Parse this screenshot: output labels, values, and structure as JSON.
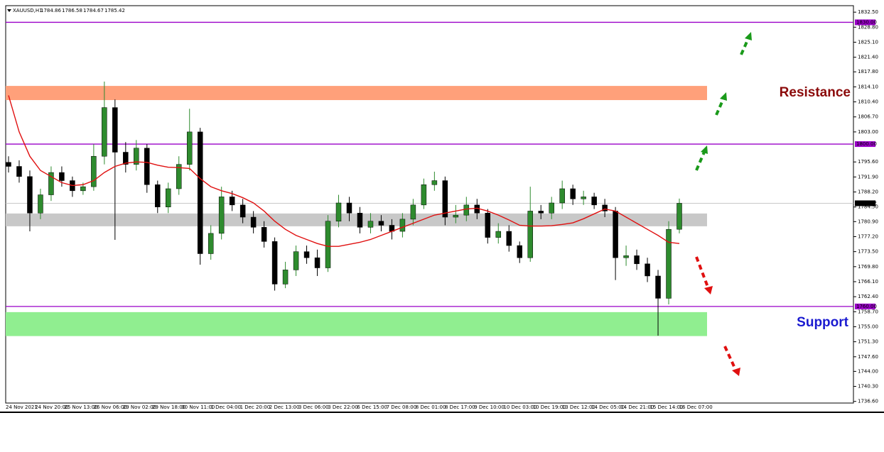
{
  "header": {
    "symbol": "XAUUSD,H1",
    "ohlc": [
      1784.86,
      1786.58,
      1784.67,
      1785.42
    ]
  },
  "chart_data": {
    "type": "candlestick",
    "xtick_labels": [
      "24 Nov 2021",
      "24 Nov 20:00",
      "25 Nov 13:00",
      "26 Nov 06:00",
      "29 Nov 02:00",
      "29 Nov 18:00",
      "30 Nov 11:00",
      "1 Dec 04:00",
      "1 Dec 20:00",
      "2 Dec 13:00",
      "3 Dec 06:00",
      "3 Dec 22:00",
      "6 Dec 15:00",
      "7 Dec 08:00",
      "8 Dec 01:00",
      "8 Dec 17:00",
      "9 Dec 10:00",
      "10 Dec 03:00",
      "10 Dec 19:00",
      "13 Dec 12:00",
      "14 Dec 05:00",
      "14 Dec 21:00",
      "15 Dec 14:00",
      "16 Dec 07:00"
    ],
    "open": [
      1795.5,
      1794.5,
      1792,
      1783,
      1787.5,
      1793,
      1791,
      1788.5,
      1789.5,
      1797,
      1809,
      1798,
      1795,
      1799,
      1790,
      1784.5,
      1789,
      1795,
      1803,
      1773,
      1778,
      1787,
      1785,
      1782,
      1779.5,
      1776,
      1765.5,
      1769,
      1773.5,
      1772,
      1769.5,
      1781,
      1785.5,
      1783,
      1779.5,
      1781,
      1780,
      1778.5,
      1781.5,
      1785,
      1790,
      1791,
      1782,
      1782.5,
      1785,
      1783,
      1777,
      1778.5,
      1775,
      1772,
      1783.5,
      1783,
      1785.5,
      1789,
      1786.5,
      1787,
      1785,
      1783.5,
      1772,
      1772.5,
      1770.5,
      1767.5,
      1762,
      1779
    ],
    "high": [
      1797,
      1796,
      1793.5,
      1789,
      1794.5,
      1794.5,
      1792,
      1790.5,
      1800,
      1815.4,
      1811,
      1800.5,
      1801,
      1800,
      1791,
      1790.5,
      1797,
      1808.7,
      1804,
      1780,
      1789.5,
      1788.5,
      1786.5,
      1783.5,
      1781,
      1777,
      1771,
      1775,
      1775,
      1774,
      1782.5,
      1787.5,
      1787,
      1784.5,
      1783,
      1782.5,
      1781.5,
      1783,
      1786.5,
      1791.5,
      1793.2,
      1792,
      1785,
      1787,
      1786.5,
      1784,
      1780.5,
      1780,
      1776,
      1789.5,
      1785,
      1787,
      1791,
      1790,
      1788.5,
      1788,
      1786.5,
      1784.5,
      1775,
      1774,
      1772,
      1769,
      1781,
      1786.58
    ],
    "low": [
      1793,
      1790.5,
      1778.5,
      1781.5,
      1786,
      1789.5,
      1787,
      1787.5,
      1788.5,
      1795,
      1776.4,
      1793,
      1793.5,
      1788,
      1783,
      1783,
      1787.5,
      1793.5,
      1770.3,
      1771.5,
      1776.5,
      1783.5,
      1780.5,
      1778,
      1774.5,
      1763.9,
      1764.5,
      1767.5,
      1770.5,
      1767.5,
      1768.5,
      1779.5,
      1781,
      1778,
      1778,
      1778.5,
      1776.5,
      1777,
      1780,
      1784,
      1788.5,
      1780,
      1780.5,
      1781,
      1781.5,
      1775.5,
      1775.5,
      1773.5,
      1770.7,
      1771,
      1781.5,
      1781.5,
      1784,
      1785,
      1785,
      1784,
      1782,
      1766.5,
      1770,
      1769,
      1766,
      1752.8,
      1760.5,
      1778
    ],
    "close": [
      1794.5,
      1792,
      1783,
      1787.5,
      1793,
      1791,
      1788.5,
      1789.5,
      1797,
      1809,
      1798,
      1795,
      1799,
      1790,
      1784.5,
      1789,
      1795,
      1803,
      1773,
      1778,
      1787,
      1785,
      1782,
      1779.5,
      1776,
      1765.5,
      1769,
      1773.5,
      1772,
      1769.5,
      1781,
      1785.5,
      1783,
      1779.5,
      1781,
      1780,
      1778.5,
      1781.5,
      1785,
      1790,
      1791,
      1782,
      1782.5,
      1785,
      1783,
      1777,
      1778.5,
      1775,
      1772,
      1783.5,
      1783,
      1785.5,
      1789,
      1786.5,
      1787,
      1785,
      1783.5,
      1772,
      1772.5,
      1770.5,
      1767.5,
      1762,
      1779,
      1785.42
    ],
    "bull_color": "#2e8b2e",
    "bear_color": "#000000",
    "ma": {
      "color": "#e01010",
      "values": [
        1812,
        1803,
        1797,
        1793.5,
        1792,
        1790.5,
        1789.8,
        1790,
        1791,
        1793,
        1794.5,
        1795.3,
        1795.6,
        1795.5,
        1794.8,
        1794.3,
        1794.2,
        1794,
        1791.5,
        1789.5,
        1788.5,
        1787.8,
        1786.8,
        1785.5,
        1783.5,
        1781,
        1779,
        1777.5,
        1776.5,
        1775.5,
        1774.8,
        1774.8,
        1775.3,
        1775.8,
        1776.5,
        1777.5,
        1778.5,
        1779.5,
        1780.5,
        1781.5,
        1782.5,
        1783,
        1783.5,
        1784,
        1784.2,
        1783.5,
        1782.5,
        1781.3,
        1780,
        1779.8,
        1779.8,
        1779.9,
        1780.2,
        1780.6,
        1781.6,
        1782.8,
        1784,
        1783.5,
        1782,
        1780.5,
        1779,
        1777.5,
        1775.8,
        1775.5
      ]
    },
    "ylim": [
      1736.2,
      1834.1
    ],
    "yticks": [
      {
        "value": 1832.5,
        "label": "1832.50"
      },
      {
        "value": 1828.8,
        "label": "1828.80"
      },
      {
        "value": 1825.1,
        "label": "1825.10"
      },
      {
        "value": 1821.4,
        "label": "1821.40"
      },
      {
        "value": 1817.8,
        "label": "1817.80"
      },
      {
        "value": 1814.1,
        "label": "1814.10"
      },
      {
        "value": 1810.4,
        "label": "1810.40"
      },
      {
        "value": 1806.7,
        "label": "1806.70"
      },
      {
        "value": 1803,
        "label": "1803.00"
      },
      {
        "value": 1795.6,
        "label": "1795.60"
      },
      {
        "value": 1791.9,
        "label": "1791.90"
      },
      {
        "value": 1788.2,
        "label": "1788.20"
      },
      {
        "value": 1784.5,
        "label": "1784.50"
      },
      {
        "value": 1780.9,
        "label": "1780.90"
      },
      {
        "value": 1777.2,
        "label": "1777.20"
      },
      {
        "value": 1773.5,
        "label": "1773.50"
      },
      {
        "value": 1769.8,
        "label": "1769.80"
      },
      {
        "value": 1766.1,
        "label": "1766.10"
      },
      {
        "value": 1762.4,
        "label": "1762.40"
      },
      {
        "value": 1758.7,
        "label": "1758.70"
      },
      {
        "value": 1755,
        "label": "1755.00"
      },
      {
        "value": 1751.3,
        "label": "1751.30"
      },
      {
        "value": 1747.6,
        "label": "1747.60"
      },
      {
        "value": 1744,
        "label": "1744.00"
      },
      {
        "value": 1740.3,
        "label": "1740.30"
      },
      {
        "value": 1736.6,
        "label": "1736.60"
      }
    ],
    "levels": [
      {
        "value": 1830,
        "label": "1830.00",
        "color": "#9a00c8"
      },
      {
        "value": 1800,
        "label": "1800.00",
        "color": "#9a00c8"
      },
      {
        "value": 1760,
        "label": "1760.00",
        "color": "#9a00c8"
      },
      {
        "value": 1785.42,
        "label": "1785.42",
        "color": "#000000"
      }
    ],
    "zones": [
      {
        "low": 1810.84,
        "high": 1814.33,
        "color": "#ffa07a"
      },
      {
        "low": 1779.75,
        "high": 1782.9,
        "color": "#c8c8c8"
      },
      {
        "low": 1752.7,
        "high": 1758.6,
        "color": "#90ee90"
      }
    ],
    "annotations": [
      {
        "text": "Resistance",
        "color": "#8b0a0a"
      },
      {
        "text": "Support",
        "color": "#1a1ad0"
      }
    ]
  }
}
